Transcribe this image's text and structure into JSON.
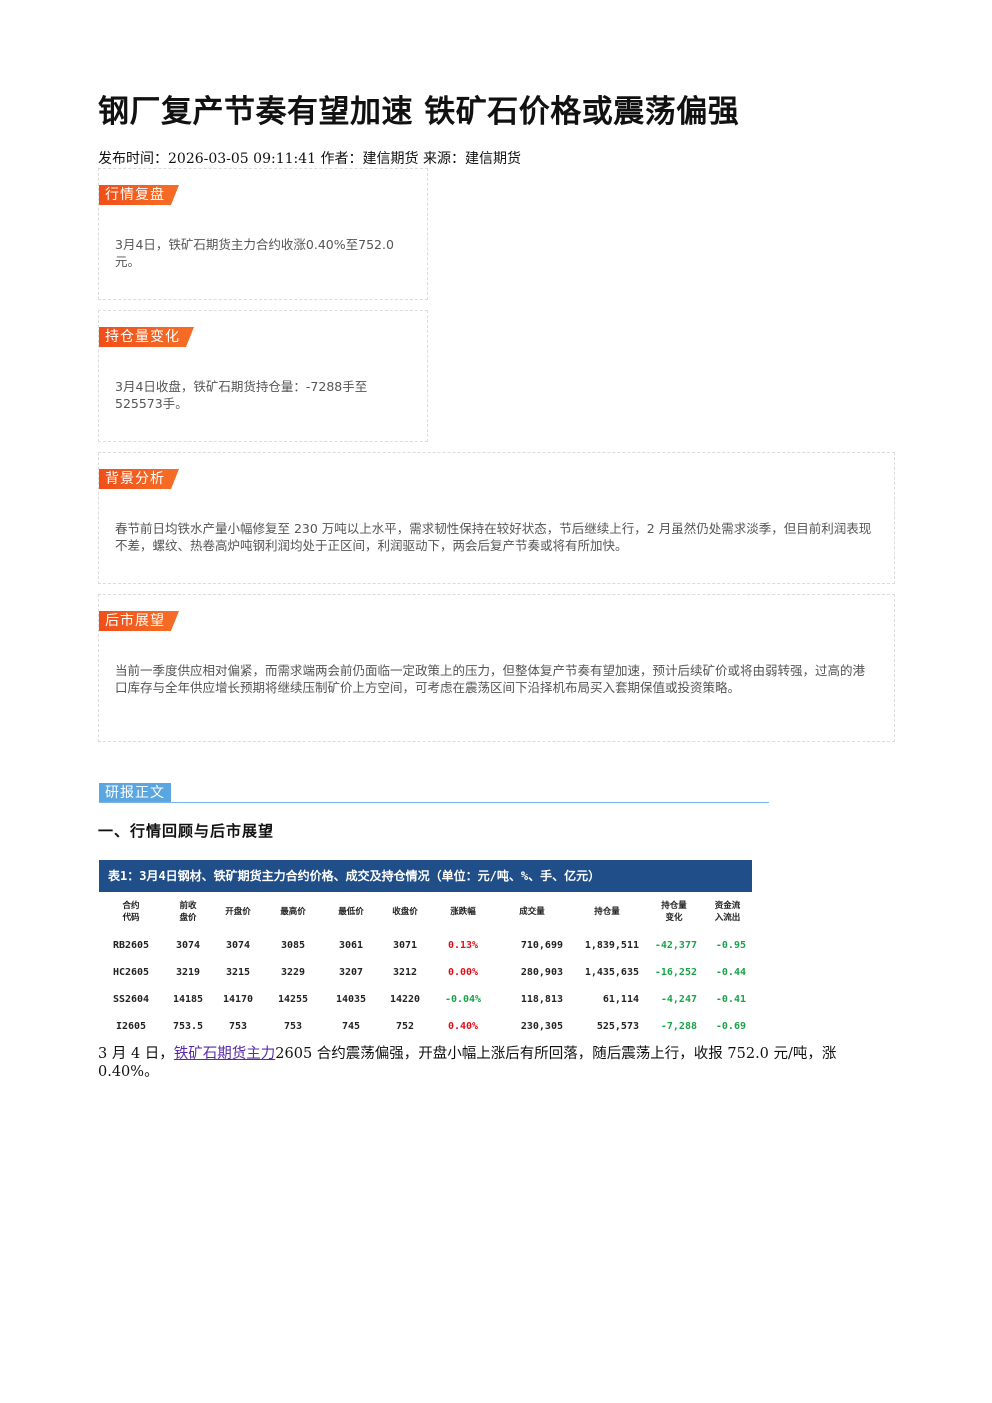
{
  "article": {
    "title": "钢厂复产节奏有望加速 铁矿石价格或震荡偏强",
    "meta": "发布时间：2026-03-05 09:11:41 作者：建信期货 来源：建信期货"
  },
  "cards": {
    "review": {
      "tag": "行情复盘",
      "text": "3月4日，铁矿石期货主力合约收涨0.40%至752.0元。"
    },
    "position": {
      "tag": "持仓量变化",
      "text": "3月4日收盘，铁矿石期货持仓量：-7288手至525573手。"
    },
    "background": {
      "tag": "背景分析",
      "text": "春节前日均铁水产量小幅修复至 230 万吨以上水平，需求韧性保持在较好状态，节后继续上行，2 月虽然仍处需求淡季，但目前利润表现不差，螺纹、热卷高炉吨钢利润均处于正区间，利润驱动下，两会后复产节奏或将有所加快。"
    },
    "outlook": {
      "tag": "后市展望",
      "text": "当前一季度供应相对偏紧，而需求端两会前仍面临一定政策上的压力，但整体复产节奏有望加速，预计后续矿价或将由弱转强，过高的港口库存与全年供应增长预期将继续压制矿价上方空间，可考虑在震荡区间下沿择机布局买入套期保值或投资策略。"
    }
  },
  "report": {
    "tag": "研报正文",
    "section_title": "一、行情回顾与后市展望",
    "table": {
      "caption": "表1：3月4日钢材、铁矿期货主力合约价格、成交及持仓情况（单位：元/吨、%、手、亿元）",
      "headers": [
        "合约\n代码",
        "前收\n盘价",
        "开盘价",
        "最高价",
        "最低价",
        "收盘价",
        "涨跌幅",
        "成交量",
        "持仓量",
        "持仓量\n变化",
        "资金流\n入流出"
      ],
      "rows": [
        [
          "RB2605",
          "3074",
          "3074",
          "3085",
          "3061",
          "3071",
          "0.13%",
          "710,699",
          "1,839,511",
          "-42,377",
          "-0.95"
        ],
        [
          "HC2605",
          "3219",
          "3215",
          "3229",
          "3207",
          "3212",
          "0.00%",
          "280,903",
          "1,435,635",
          "-16,252",
          "-0.44"
        ],
        [
          "SS2604",
          "14185",
          "14170",
          "14255",
          "14035",
          "14220",
          "-0.04%",
          "118,813",
          "61,114",
          "-4,247",
          "-0.41"
        ],
        [
          "I2605",
          "753.5",
          "753",
          "753",
          "745",
          "752",
          "0.40%",
          "230,305",
          "525,573",
          "-7,288",
          "-0.69"
        ]
      ]
    },
    "para_prefix": "3 月 4 日，",
    "para_link": "铁矿石期货主力",
    "para_suffix": "2605 合约震荡偏强，开盘小幅上涨后有所回落，随后震荡上行，收报 752.0 元/吨，涨 0.40%。"
  },
  "colors": {
    "tag_orange": "#f04e19",
    "table_header_blue": "#1f4e88",
    "report_tag_blue": "#5aa6e0",
    "up_red": "#e0101a",
    "down_green": "#1aa34a"
  }
}
